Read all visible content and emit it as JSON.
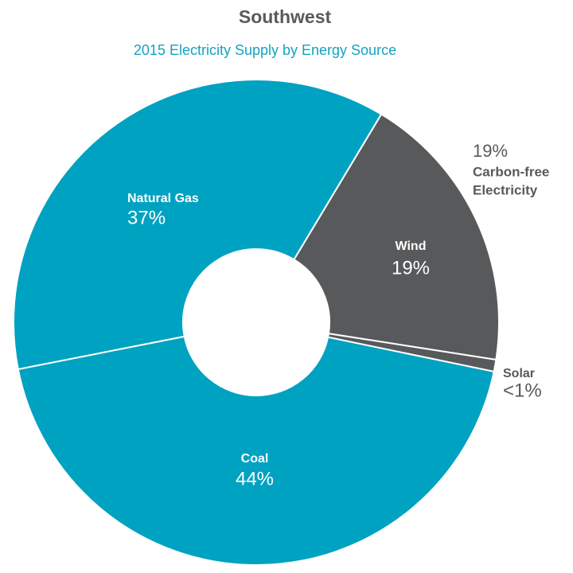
{
  "chart_data": {
    "type": "donut",
    "title": "Southwest",
    "subtitle": "2015 Electricity Supply by Energy Source",
    "categories": [
      "Wind",
      "Solar",
      "Coal",
      "Natural Gas"
    ],
    "values": [
      19,
      0.8,
      44,
      37
    ],
    "value_labels": [
      "19%",
      "<1%",
      "44%",
      "37%"
    ],
    "colors": [
      "#58595b",
      "#58595b",
      "#00a2c1",
      "#00a2c1"
    ],
    "annotation": {
      "label": "19%",
      "lines": [
        "Carbon-free",
        "Electricity"
      ]
    }
  }
}
